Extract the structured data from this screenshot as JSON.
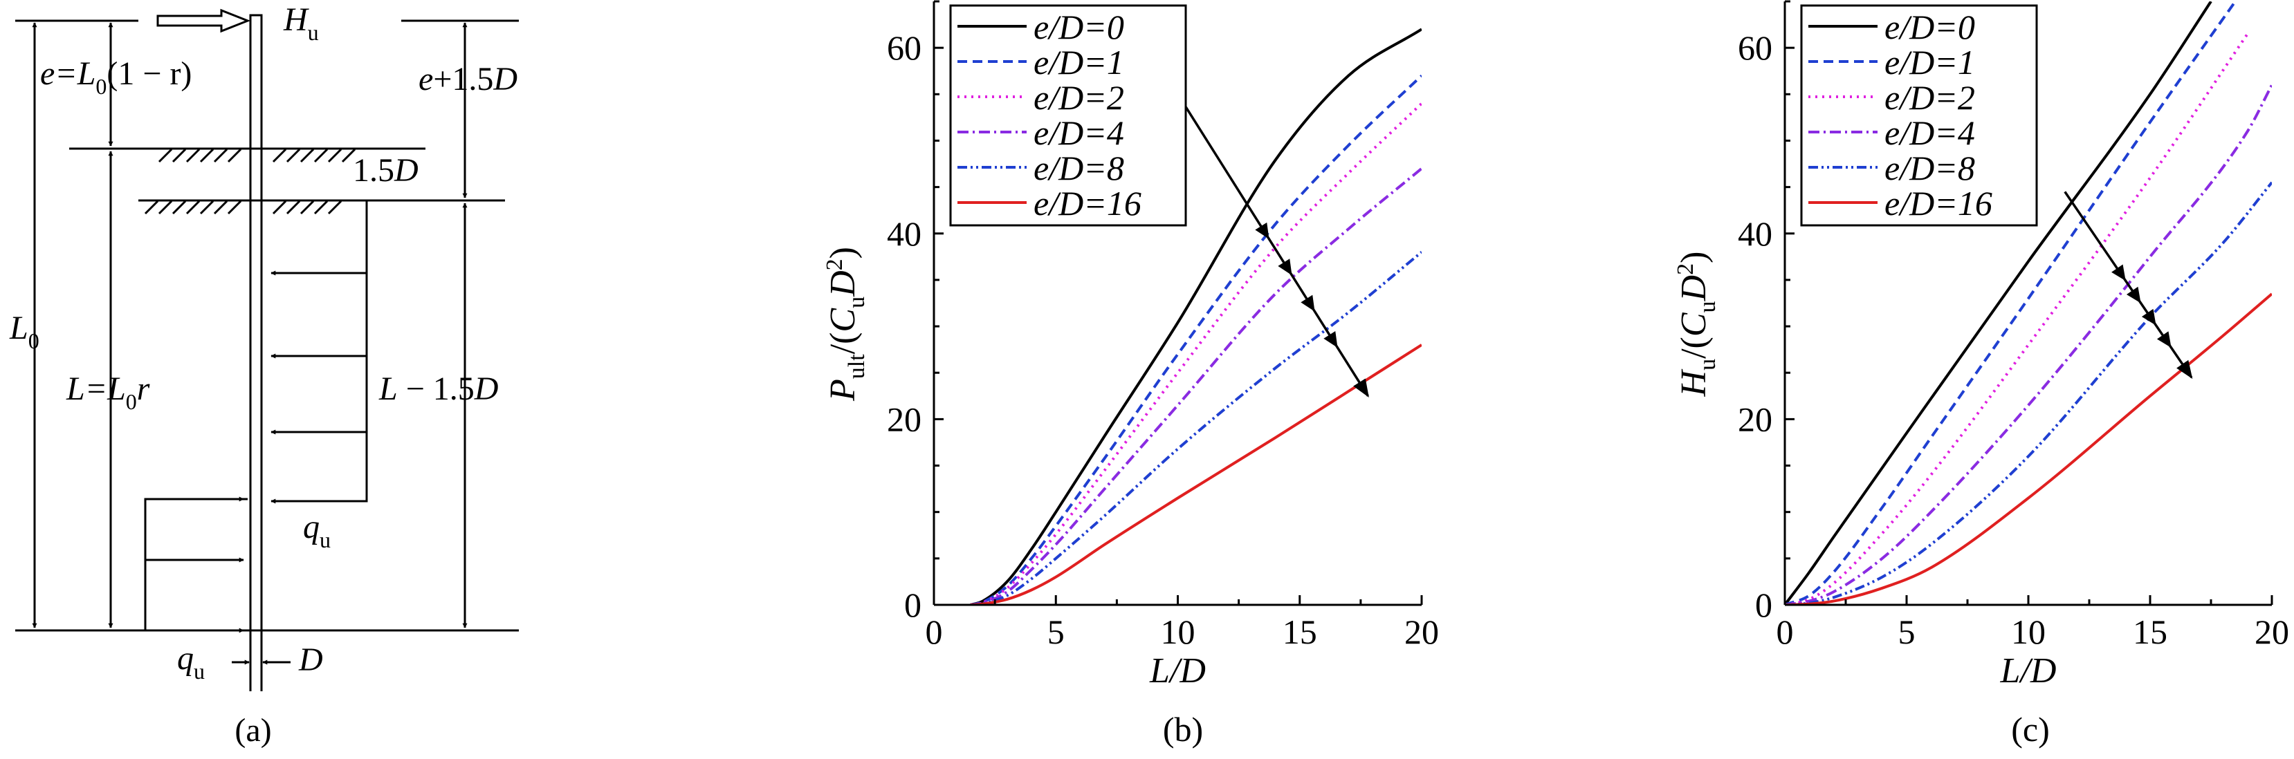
{
  "panel_a": {
    "caption": "(a)",
    "labels": {
      "Hu_main": "H",
      "Hu_sub": "u",
      "e_left": "e=L",
      "e_sub": "0",
      "e_right": "(1 − r)",
      "e15_e": "e",
      "e15_rest": "+1.5",
      "e15_D": "D",
      "d15_num": "1.5",
      "d15_D": "D",
      "L0_main": "L",
      "L0_sub": "0",
      "L_main": "L=L",
      "L_sub": "0",
      "L_r": "r",
      "Lm_L": "L",
      "Lm_rest": " − 1.5",
      "Lm_D": "D",
      "qu1_main": "q",
      "qu1_sub": "u",
      "qu2_main": "q",
      "qu2_sub": "u",
      "D_bottom": "D"
    }
  },
  "chart_data": [
    {
      "type": "line",
      "caption": "(b)",
      "xlabel": "L/D",
      "ylabel_parts": [
        "P",
        "ult",
        "/(C",
        "u",
        "D",
        "2",
        ")"
      ],
      "xlim": [
        0,
        20
      ],
      "ylim": [
        0,
        65
      ],
      "x_ticks": [
        0,
        5,
        10,
        15,
        20
      ],
      "y_ticks": [
        0,
        20,
        40,
        60
      ],
      "legend_position": "top-left",
      "legend_labels": [
        "e/D=0",
        "e/D=1",
        "e/D=2",
        "e/D=4",
        "e/D=8",
        "e/D=16"
      ],
      "series": [
        {
          "name": "e/D=0",
          "color": "#000000",
          "dash": "",
          "points": [
            [
              1.5,
              0
            ],
            [
              2,
              0.4
            ],
            [
              3,
              2.5
            ],
            [
              4,
              6
            ],
            [
              5,
              10
            ],
            [
              7,
              18.2
            ],
            [
              10,
              30.4
            ],
            [
              14,
              47.9
            ],
            [
              17,
              57.0
            ],
            [
              20,
              62.0
            ]
          ]
        },
        {
          "name": "e/D=1",
          "color": "#1f3fd1",
          "dash": "14,8",
          "points": [
            [
              1.5,
              0
            ],
            [
              2,
              0.3
            ],
            [
              3,
              2
            ],
            [
              4,
              5
            ],
            [
              5,
              8.5
            ],
            [
              7,
              15.8
            ],
            [
              10,
              27
            ],
            [
              14,
              41
            ],
            [
              17,
              49.5
            ],
            [
              20,
              57.0
            ]
          ]
        },
        {
          "name": "e/D=2",
          "color": "#e020e0",
          "dash": "3,7",
          "points": [
            [
              1.5,
              0
            ],
            [
              2,
              0.25
            ],
            [
              3,
              1.8
            ],
            [
              4,
              4.5
            ],
            [
              5,
              7.6
            ],
            [
              7,
              14.5
            ],
            [
              10,
              25
            ],
            [
              14,
              38.5
            ],
            [
              17,
              46.5
            ],
            [
              20,
              54.0
            ]
          ]
        },
        {
          "name": "e/D=4",
          "color": "#8a2be2",
          "dash": "16,6,3,6",
          "points": [
            [
              1.5,
              0
            ],
            [
              2,
              0.2
            ],
            [
              3,
              1.4
            ],
            [
              4,
              3.8
            ],
            [
              5,
              6.5
            ],
            [
              7,
              12.5
            ],
            [
              10,
              21.5
            ],
            [
              14,
              33.5
            ],
            [
              17,
              40.5
            ],
            [
              20,
              47.0
            ]
          ]
        },
        {
          "name": "e/D=8",
          "color": "#1f3fd1",
          "dash": "14,5,3,5,3,5",
          "points": [
            [
              1.5,
              0
            ],
            [
              2,
              0.15
            ],
            [
              3,
              1
            ],
            [
              4,
              2.8
            ],
            [
              5,
              5
            ],
            [
              7,
              9.6
            ],
            [
              10,
              16.8
            ],
            [
              14,
              25.5
            ],
            [
              17,
              31.5
            ],
            [
              20,
              38.0
            ]
          ]
        },
        {
          "name": "e/D=16",
          "color": "#e02020",
          "dash": "",
          "points": [
            [
              1.5,
              0
            ],
            [
              2,
              0.1
            ],
            [
              3,
              0.6
            ],
            [
              4,
              1.6
            ],
            [
              5,
              3
            ],
            [
              7,
              6.5
            ],
            [
              10,
              11.5
            ],
            [
              14,
              18.0
            ],
            [
              17,
              23.0
            ],
            [
              20,
              28.0
            ]
          ]
        }
      ],
      "trend_arrow": [
        [
          10,
          55
        ],
        [
          17.8,
          22.5
        ]
      ]
    },
    {
      "type": "line",
      "caption": "(c)",
      "xlabel": "L/D",
      "ylabel_parts": [
        "H",
        "u",
        "/(C",
        "u",
        "D",
        "2",
        ")"
      ],
      "xlim": [
        0,
        20
      ],
      "ylim": [
        0,
        65
      ],
      "x_ticks": [
        0,
        5,
        10,
        15,
        20
      ],
      "y_ticks": [
        0,
        20,
        40,
        60
      ],
      "legend_position": "top-left",
      "legend_labels": [
        "e/D=0",
        "e/D=1",
        "e/D=2",
        "e/D=4",
        "e/D=8",
        "e/D=16"
      ],
      "series": [
        {
          "name": "e/D=0",
          "color": "#000000",
          "dash": "",
          "points": [
            [
              0,
              0
            ],
            [
              1,
              3.5
            ],
            [
              2,
              7.3
            ],
            [
              5,
              18.5
            ],
            [
              10,
              37
            ],
            [
              15,
              55
            ],
            [
              17.5,
              65
            ]
          ]
        },
        {
          "name": "e/D=1",
          "color": "#1f3fd1",
          "dash": "14,8",
          "points": [
            [
              0,
              0
            ],
            [
              1,
              1
            ],
            [
              2,
              3.5
            ],
            [
              4,
              10.5
            ],
            [
              6,
              18
            ],
            [
              10,
              33
            ],
            [
              15,
              52
            ],
            [
              18.5,
              65
            ]
          ]
        },
        {
          "name": "e/D=2",
          "color": "#e020e0",
          "dash": "3,7",
          "points": [
            [
              0,
              0
            ],
            [
              1,
              0.6
            ],
            [
              2,
              2.3
            ],
            [
              4,
              7.7
            ],
            [
              6,
              14
            ],
            [
              10,
              28
            ],
            [
              15,
              46
            ],
            [
              19,
              61.5
            ]
          ]
        },
        {
          "name": "e/D=4",
          "color": "#8a2be2",
          "dash": "16,6,3,6",
          "points": [
            [
              0,
              0
            ],
            [
              1,
              0.4
            ],
            [
              2,
              1.4
            ],
            [
              4,
              5
            ],
            [
              6,
              10
            ],
            [
              10,
              21.5
            ],
            [
              15,
              37.5
            ],
            [
              19,
              51
            ],
            [
              20,
              56
            ]
          ]
        },
        {
          "name": "e/D=8",
          "color": "#1f3fd1",
          "dash": "14,5,3,5,3,5",
          "points": [
            [
              0,
              0
            ],
            [
              1,
              0.2
            ],
            [
              2,
              0.8
            ],
            [
              4,
              3
            ],
            [
              6,
              6.5
            ],
            [
              10,
              16
            ],
            [
              15,
              31
            ],
            [
              18,
              39
            ],
            [
              20,
              45.5
            ]
          ]
        },
        {
          "name": "e/D=16",
          "color": "#e02020",
          "dash": "",
          "points": [
            [
              0,
              0
            ],
            [
              1,
              0.1
            ],
            [
              2,
              0.4
            ],
            [
              4,
              1.8
            ],
            [
              6,
              4
            ],
            [
              10,
              11.5
            ],
            [
              15,
              22.5
            ],
            [
              18,
              29
            ],
            [
              20,
              33.5
            ]
          ]
        }
      ],
      "trend_arrow": [
        [
          11.5,
          44.5
        ],
        [
          16.7,
          24.5
        ]
      ]
    }
  ]
}
